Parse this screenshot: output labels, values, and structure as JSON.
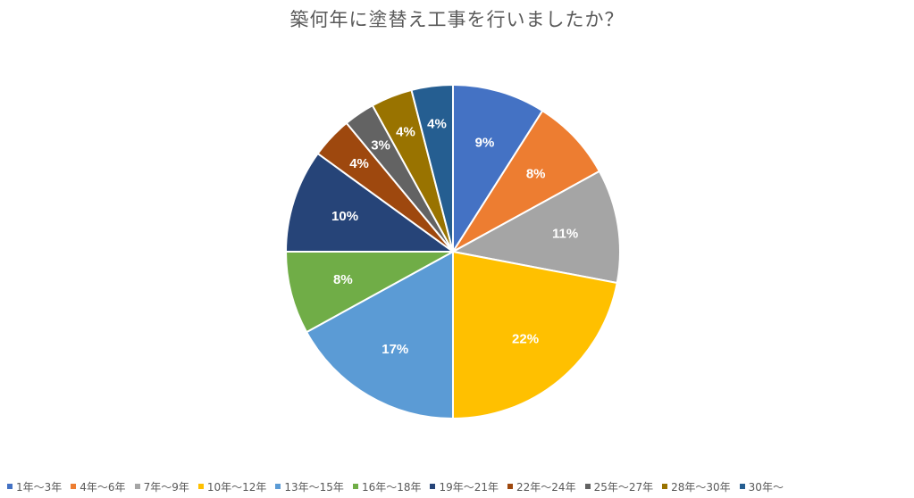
{
  "chart_data": {
    "type": "pie",
    "title": "築何年に塗替え工事を行いましたか？",
    "categories": [
      "1年～3年",
      "4年～6年",
      "7年～9年",
      "10年～12年",
      "13年～15年",
      "16年～18年",
      "19年～21年",
      "22年～24年",
      "25年～27年",
      "28年～30年",
      "30年～"
    ],
    "values": [
      9,
      8,
      11,
      22,
      17,
      8,
      10,
      4,
      3,
      4,
      4
    ],
    "data_labels": [
      "9%",
      "8%",
      "11%",
      "22%",
      "17%",
      "8%",
      "10%",
      "4%",
      "3%",
      "4%",
      "4%"
    ],
    "colors": [
      "#4472C4",
      "#ED7D31",
      "#A5A5A5",
      "#FFC000",
      "#5B9BD5",
      "#70AD47",
      "#264478",
      "#9E480E",
      "#636363",
      "#997300",
      "#255E91"
    ],
    "legend_position": "bottom",
    "start_angle": "12 o'clock",
    "direction": "clockwise"
  }
}
